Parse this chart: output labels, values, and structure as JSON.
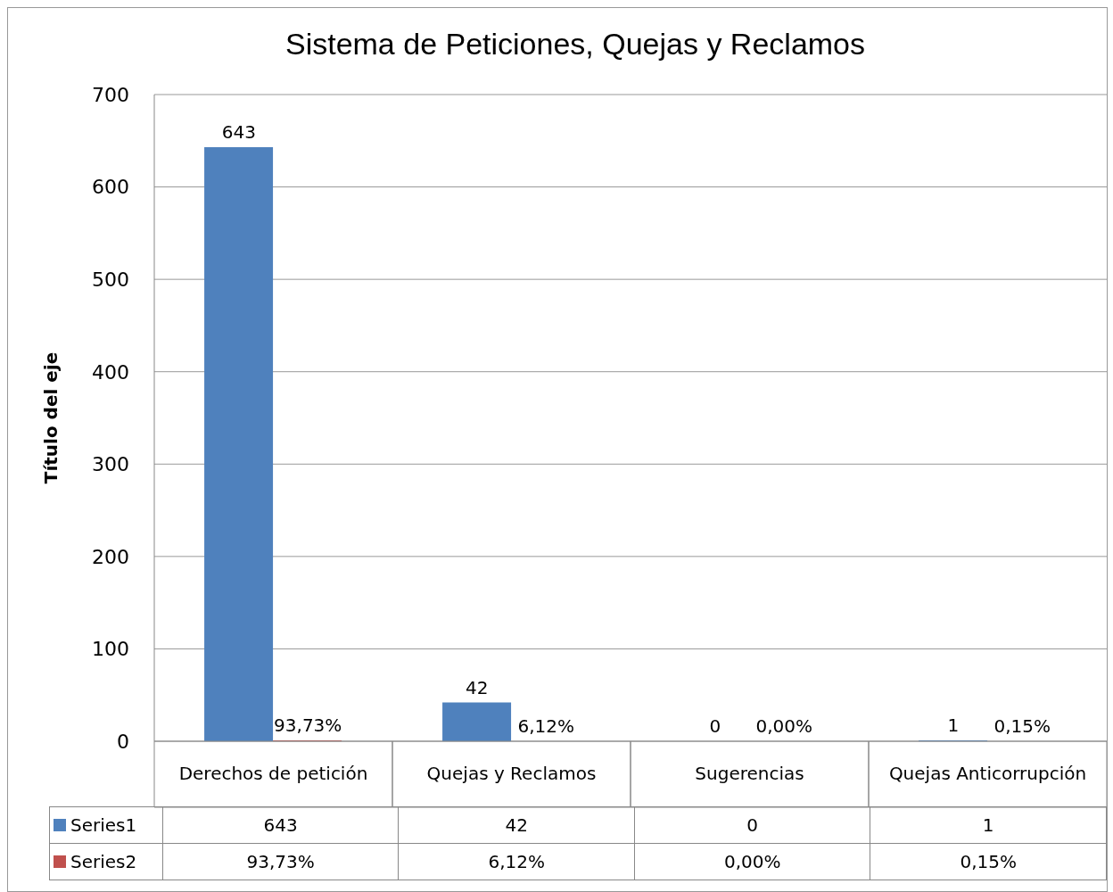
{
  "chart_data": {
    "type": "bar",
    "title": "Sistema de Peticiones, Quejas y Reclamos",
    "ylabel": "Título del eje",
    "categories": [
      "Derechos de petición",
      "Quejas y Reclamos",
      "Sugerencias",
      "Quejas Anticorrupción"
    ],
    "series": [
      {
        "name": "Series1",
        "color": "#4f81bd",
        "values": [
          643,
          42,
          0,
          1
        ],
        "value_labels": [
          "643",
          "42",
          "0",
          "1"
        ]
      },
      {
        "name": "Series2",
        "color": "#c0504d",
        "values": [
          0.9373,
          0.0612,
          0,
          0.0015
        ],
        "value_labels": [
          "93,73%",
          "6,12%",
          "0,00%",
          "0,15%"
        ]
      }
    ],
    "ylim": [
      0,
      700
    ],
    "yticks": [
      0,
      100,
      200,
      300,
      400,
      500,
      600,
      700
    ],
    "grid": "y",
    "legend": "bottom"
  }
}
